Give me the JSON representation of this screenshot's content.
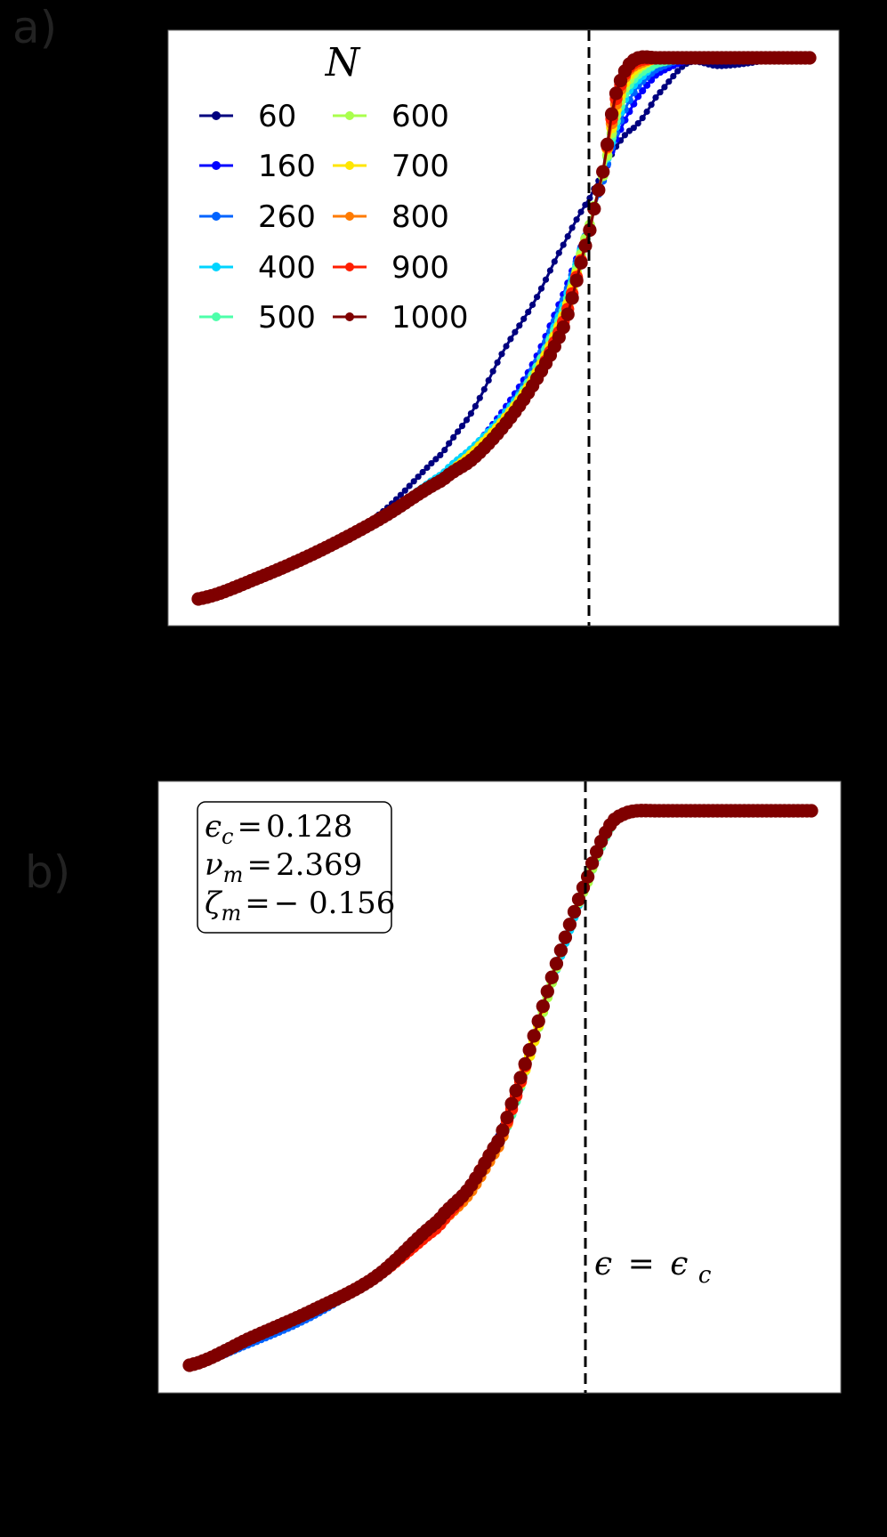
{
  "figure": {
    "panel_a_label": "a)",
    "panel_b_label": "b)",
    "background": "#000000",
    "plot_background": "#ffffff"
  },
  "chart_data": [
    {
      "type": "line",
      "panel": "a",
      "title": "",
      "xlabel": "",
      "ylabel": "",
      "axis_ticks_visible": false,
      "grid": false,
      "x_domain": [
        0,
        1
      ],
      "y_domain": [
        0,
        1
      ],
      "critical_line": {
        "x": 0.664,
        "style": "dashed",
        "color": "#000000"
      },
      "legend": {
        "title": "N",
        "position": "upper left",
        "columns": 2,
        "entries": [
          "60",
          "160",
          "260",
          "400",
          "500",
          "600",
          "700",
          "800",
          "900",
          "1000"
        ]
      },
      "x": [
        0.0,
        0.1,
        0.2,
        0.3,
        0.4,
        0.45,
        0.5,
        0.55,
        0.6,
        0.64,
        0.664,
        0.68,
        0.7,
        0.72,
        0.75,
        0.8,
        0.85,
        0.9,
        0.95,
        1.0
      ],
      "series": [
        {
          "name": "60",
          "color": "#00007f",
          "values": [
            0.0,
            0.04,
            0.09,
            0.16,
            0.27,
            0.35,
            0.46,
            0.55,
            0.66,
            0.74,
            0.79,
            0.83,
            0.86,
            0.88,
            0.93,
            0.99,
            0.985,
            0.99,
            1.0,
            1.0
          ]
        },
        {
          "name": "160",
          "color": "#0000ff",
          "values": [
            0.0,
            0.04,
            0.09,
            0.15,
            0.23,
            0.28,
            0.35,
            0.44,
            0.57,
            0.69,
            0.78,
            0.84,
            0.89,
            0.93,
            0.97,
            0.995,
            1.0,
            1.0,
            1.0,
            1.0
          ]
        },
        {
          "name": "260",
          "color": "#0063ff",
          "values": [
            0.0,
            0.04,
            0.09,
            0.15,
            0.23,
            0.28,
            0.34,
            0.43,
            0.56,
            0.69,
            0.78,
            0.85,
            0.91,
            0.95,
            0.98,
            1.0,
            1.0,
            1.0,
            1.0,
            1.0
          ]
        },
        {
          "name": "400",
          "color": "#00d4ff",
          "values": [
            0.0,
            0.04,
            0.09,
            0.15,
            0.23,
            0.28,
            0.34,
            0.42,
            0.55,
            0.69,
            0.79,
            0.86,
            0.93,
            0.96,
            0.99,
            1.0,
            1.0,
            1.0,
            1.0,
            1.0
          ]
        },
        {
          "name": "500",
          "color": "#4dffaa",
          "values": [
            0.0,
            0.04,
            0.09,
            0.15,
            0.22,
            0.27,
            0.33,
            0.42,
            0.54,
            0.69,
            0.79,
            0.87,
            0.94,
            0.97,
            0.99,
            1.0,
            1.0,
            1.0,
            1.0,
            1.0
          ]
        },
        {
          "name": "600",
          "color": "#aaff4d",
          "values": [
            0.0,
            0.04,
            0.09,
            0.15,
            0.22,
            0.27,
            0.33,
            0.41,
            0.53,
            0.69,
            0.79,
            0.88,
            0.95,
            0.98,
            1.0,
            1.0,
            1.0,
            1.0,
            1.0,
            1.0
          ]
        },
        {
          "name": "700",
          "color": "#ffe600",
          "values": [
            0.0,
            0.04,
            0.09,
            0.15,
            0.22,
            0.27,
            0.33,
            0.41,
            0.53,
            0.68,
            0.8,
            0.89,
            0.96,
            0.985,
            1.0,
            1.0,
            1.0,
            1.0,
            1.0,
            1.0
          ]
        },
        {
          "name": "800",
          "color": "#ff7b00",
          "values": [
            0.0,
            0.04,
            0.09,
            0.15,
            0.22,
            0.26,
            0.32,
            0.4,
            0.52,
            0.68,
            0.8,
            0.9,
            0.97,
            0.99,
            1.0,
            1.0,
            1.0,
            1.0,
            1.0,
            1.0
          ]
        },
        {
          "name": "900",
          "color": "#ff1e00",
          "values": [
            0.0,
            0.04,
            0.09,
            0.15,
            0.22,
            0.26,
            0.32,
            0.4,
            0.52,
            0.68,
            0.8,
            0.91,
            0.975,
            0.995,
            1.0,
            1.0,
            1.0,
            1.0,
            1.0,
            1.0
          ]
        },
        {
          "name": "1000",
          "color": "#7f0000",
          "values": [
            0.0,
            0.04,
            0.09,
            0.15,
            0.22,
            0.26,
            0.32,
            0.4,
            0.51,
            0.68,
            0.8,
            0.92,
            0.98,
            1.0,
            1.0,
            1.0,
            1.0,
            1.0,
            1.0,
            1.0
          ]
        }
      ]
    },
    {
      "type": "line",
      "panel": "b",
      "title": "",
      "xlabel": "",
      "ylabel": "",
      "axis_ticks_visible": false,
      "grid": false,
      "x_domain": [
        0,
        1
      ],
      "y_domain": [
        0,
        1
      ],
      "critical_line": {
        "x": 0.64,
        "style": "dashed",
        "color": "#000000",
        "label": "ε = ε_c"
      },
      "annotation_box": {
        "lines": [
          {
            "symbol": "ε",
            "sub": "c",
            "value": "0.128"
          },
          {
            "symbol": "ν",
            "sub": "m",
            "value": "2.369"
          },
          {
            "symbol": "ζ",
            "sub": "m",
            "value": "− 0.156"
          }
        ]
      },
      "parameters": {
        "epsilon_c": 0.128,
        "nu_m": 2.369,
        "zeta_m": -0.156
      },
      "x": [
        0.0,
        0.1,
        0.2,
        0.3,
        0.4,
        0.45,
        0.5,
        0.52,
        0.55,
        0.58,
        0.61,
        0.64,
        0.66,
        0.68,
        0.7,
        0.72,
        0.75,
        0.8,
        0.9,
        1.0
      ],
      "series": [
        {
          "name": "60",
          "color": "#00007f",
          "values": [
            0.0,
            0.04,
            0.09,
            0.16,
            0.25,
            0.32,
            0.42,
            0.48,
            0.58,
            0.69,
            0.79,
            0.88,
            0.94,
            0.985,
            1.0,
            1.0,
            1.0,
            1.0,
            1.0,
            1.0
          ]
        },
        {
          "name": "160",
          "color": "#0000ff",
          "values": [
            0.0,
            0.04,
            0.09,
            0.16,
            0.25,
            0.31,
            0.4,
            0.46,
            0.57,
            0.68,
            0.78,
            0.87,
            0.93,
            0.98,
            0.995,
            1.0,
            1.0,
            1.0,
            1.0,
            1.0
          ]
        },
        {
          "name": "260",
          "color": "#0063ff",
          "values": [
            0.0,
            0.04,
            0.09,
            0.16,
            0.25,
            0.31,
            0.4,
            0.46,
            0.57,
            0.68,
            0.78,
            0.87,
            0.93,
            0.975,
            0.995,
            1.0,
            1.0,
            1.0,
            1.0,
            1.0
          ]
        },
        {
          "name": "400",
          "color": "#00d4ff",
          "values": [
            0.0,
            0.05,
            0.1,
            0.16,
            0.25,
            0.31,
            0.4,
            0.46,
            0.57,
            0.68,
            0.78,
            0.87,
            0.93,
            0.975,
            0.995,
            1.0,
            1.0,
            1.0,
            1.0,
            1.0
          ]
        },
        {
          "name": "500",
          "color": "#4dffaa",
          "values": [
            0.0,
            0.05,
            0.1,
            0.16,
            0.25,
            0.31,
            0.4,
            0.46,
            0.57,
            0.68,
            0.79,
            0.87,
            0.93,
            0.975,
            0.995,
            1.0,
            1.0,
            1.0,
            1.0,
            1.0
          ]
        },
        {
          "name": "600",
          "color": "#aaff4d",
          "values": [
            0.0,
            0.05,
            0.1,
            0.16,
            0.25,
            0.31,
            0.4,
            0.47,
            0.57,
            0.68,
            0.79,
            0.87,
            0.935,
            0.98,
            0.995,
            1.0,
            1.0,
            1.0,
            1.0,
            1.0
          ]
        },
        {
          "name": "700",
          "color": "#ffe600",
          "values": [
            0.0,
            0.05,
            0.1,
            0.16,
            0.25,
            0.31,
            0.4,
            0.47,
            0.57,
            0.69,
            0.79,
            0.88,
            0.94,
            0.98,
            0.995,
            1.0,
            1.0,
            1.0,
            1.0,
            1.0
          ]
        },
        {
          "name": "800",
          "color": "#ff7b00",
          "values": [
            0.0,
            0.05,
            0.1,
            0.16,
            0.25,
            0.31,
            0.4,
            0.47,
            0.58,
            0.69,
            0.79,
            0.88,
            0.94,
            0.98,
            0.995,
            1.0,
            1.0,
            1.0,
            1.0,
            1.0
          ]
        },
        {
          "name": "900",
          "color": "#ff1e00",
          "values": [
            0.0,
            0.05,
            0.1,
            0.16,
            0.25,
            0.32,
            0.41,
            0.47,
            0.58,
            0.69,
            0.79,
            0.88,
            0.94,
            0.98,
            0.995,
            1.0,
            1.0,
            1.0,
            1.0,
            1.0
          ]
        },
        {
          "name": "1000",
          "color": "#7f0000",
          "values": [
            0.0,
            0.05,
            0.1,
            0.16,
            0.26,
            0.32,
            0.41,
            0.48,
            0.58,
            0.69,
            0.79,
            0.88,
            0.94,
            0.98,
            0.995,
            1.0,
            1.0,
            1.0,
            1.0,
            1.0
          ]
        }
      ]
    }
  ],
  "legend_title": "N",
  "legend_col1": [
    "60",
    "160",
    "260",
    "400",
    "500"
  ],
  "legend_col2": [
    "600",
    "700",
    "800",
    "900",
    "1000"
  ],
  "critical_label": {
    "lhs": "ϵ",
    "eq": "=",
    "rhs": "ϵ",
    "sub": "c"
  },
  "param_box": [
    {
      "sym": "ϵ",
      "sub": "c",
      "eq": "=",
      "val": "0.128"
    },
    {
      "sym": "ν",
      "sub": "m",
      "eq": "=",
      "val": "2.369"
    },
    {
      "sym": "ζ",
      "sub": "m",
      "eq": "=",
      "val": "− 0.156"
    }
  ]
}
